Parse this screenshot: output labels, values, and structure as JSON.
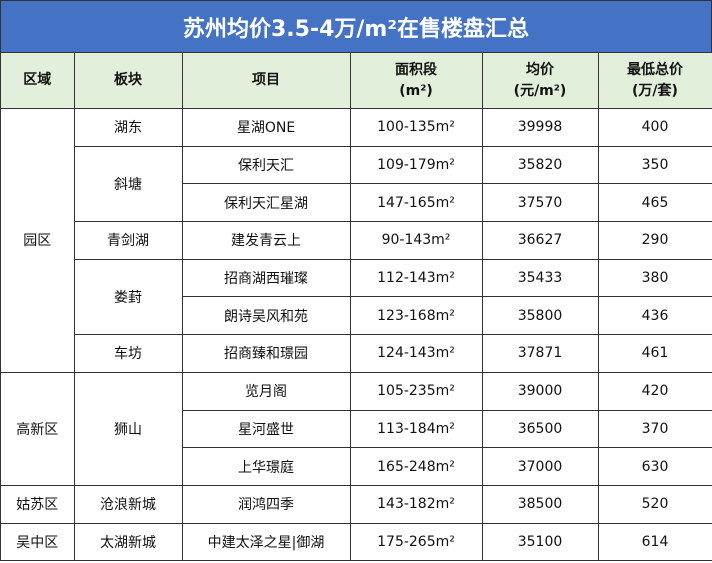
{
  "title": "苏州均价3.5-4万/m²在售楼盘汇总",
  "colors": {
    "title_bg": "#4472c4",
    "header_bg": "#e2efda"
  },
  "headers": [
    {
      "line1": "区域",
      "line2": ""
    },
    {
      "line1": "板块",
      "line2": ""
    },
    {
      "line1": "项目",
      "line2": ""
    },
    {
      "line1": "面积段",
      "line2": "(m²)"
    },
    {
      "line1": "均价",
      "line2": "(元/m²)"
    },
    {
      "line1": "最低总价",
      "line2": "(万/套)"
    }
  ],
  "districts": [
    {
      "name": "园区",
      "blocks": [
        {
          "name": "湖东",
          "projects": [
            {
              "name": "星湖ONE",
              "area": "100-135m²",
              "price": "39998",
              "total": "400"
            }
          ]
        },
        {
          "name": "斜塘",
          "projects": [
            {
              "name": "保利天汇",
              "area": "109-179m²",
              "price": "35820",
              "total": "350"
            },
            {
              "name": "保利天汇星湖",
              "area": "147-165m²",
              "price": "37570",
              "total": "465"
            }
          ]
        },
        {
          "name": "青剑湖",
          "projects": [
            {
              "name": "建发青云上",
              "area": "90-143m²",
              "price": "36627",
              "total": "290"
            }
          ]
        },
        {
          "name": "娄葑",
          "projects": [
            {
              "name": "招商湖西璀璨",
              "area": "112-143m²",
              "price": "35433",
              "total": "380"
            },
            {
              "name": "朗诗吴风和苑",
              "area": "123-168m²",
              "price": "35800",
              "total": "436"
            }
          ]
        },
        {
          "name": "车坊",
          "projects": [
            {
              "name": "招商臻和璟园",
              "area": "124-143m²",
              "price": "37871",
              "total": "461"
            }
          ]
        }
      ]
    },
    {
      "name": "高新区",
      "blocks": [
        {
          "name": "狮山",
          "projects": [
            {
              "name": "览月阁",
              "area": "105-235m²",
              "price": "39000",
              "total": "420"
            },
            {
              "name": "星河盛世",
              "area": "113-184m²",
              "price": "36500",
              "total": "370"
            },
            {
              "name": "上华璟庭",
              "area": "165-248m²",
              "price": "37000",
              "total": "630"
            }
          ]
        }
      ]
    },
    {
      "name": "姑苏区",
      "blocks": [
        {
          "name": "沧浪新城",
          "projects": [
            {
              "name": "润鸿四季",
              "area": "143-182m²",
              "price": "38500",
              "total": "520"
            }
          ]
        }
      ]
    },
    {
      "name": "吴中区",
      "blocks": [
        {
          "name": "太湖新城",
          "projects": [
            {
              "name": "中建太泽之星|御湖",
              "area": "175-265m²",
              "price": "35100",
              "total": "614"
            }
          ]
        }
      ]
    }
  ]
}
